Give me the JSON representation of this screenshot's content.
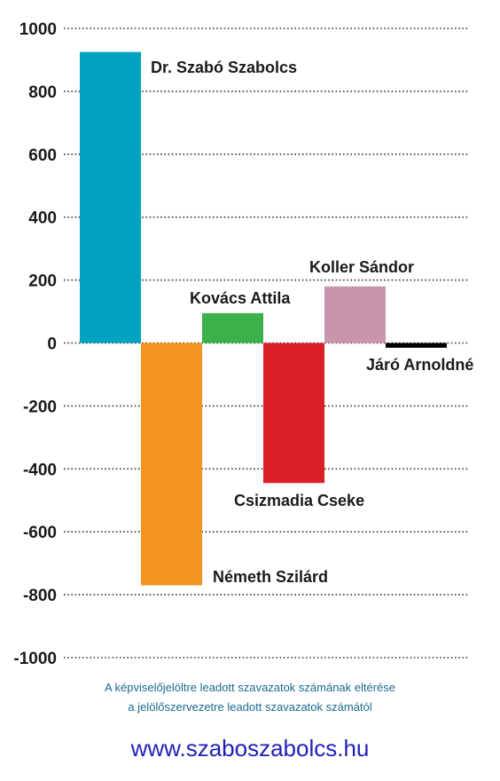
{
  "chart_data": {
    "type": "bar",
    "categories": [
      "Dr. Szabó Szabolcs",
      "Németh Szilárd",
      "Kovács Attila",
      "Csizmadia Cseke",
      "Koller Sándor",
      "Járó Arnoldné"
    ],
    "values": [
      925,
      -770,
      95,
      -445,
      180,
      -15
    ],
    "colors": [
      "#00a3bf",
      "#f39322",
      "#3cb14a",
      "#d91f26",
      "#c796ad",
      "#000000"
    ],
    "ylim": [
      -1000,
      1000
    ],
    "yticks": [
      1000,
      800,
      600,
      400,
      200,
      0,
      -200,
      -400,
      -600,
      -800,
      -1000
    ],
    "ytick_labels": [
      "1000",
      "800",
      "600",
      "400",
      "200",
      "0",
      "-200",
      "-400",
      "-600",
      "-800",
      "-1000"
    ],
    "grid": "dotted horizontal",
    "title": "",
    "xlabel": "",
    "ylabel": ""
  },
  "caption": {
    "line1": "A képviselőjelöltre leadott szavazatok számának eltérése",
    "line2": "a jelölőszervezetre leadott szavazatok számától"
  },
  "footer": {
    "website": "www.szaboszabolcs.hu"
  }
}
